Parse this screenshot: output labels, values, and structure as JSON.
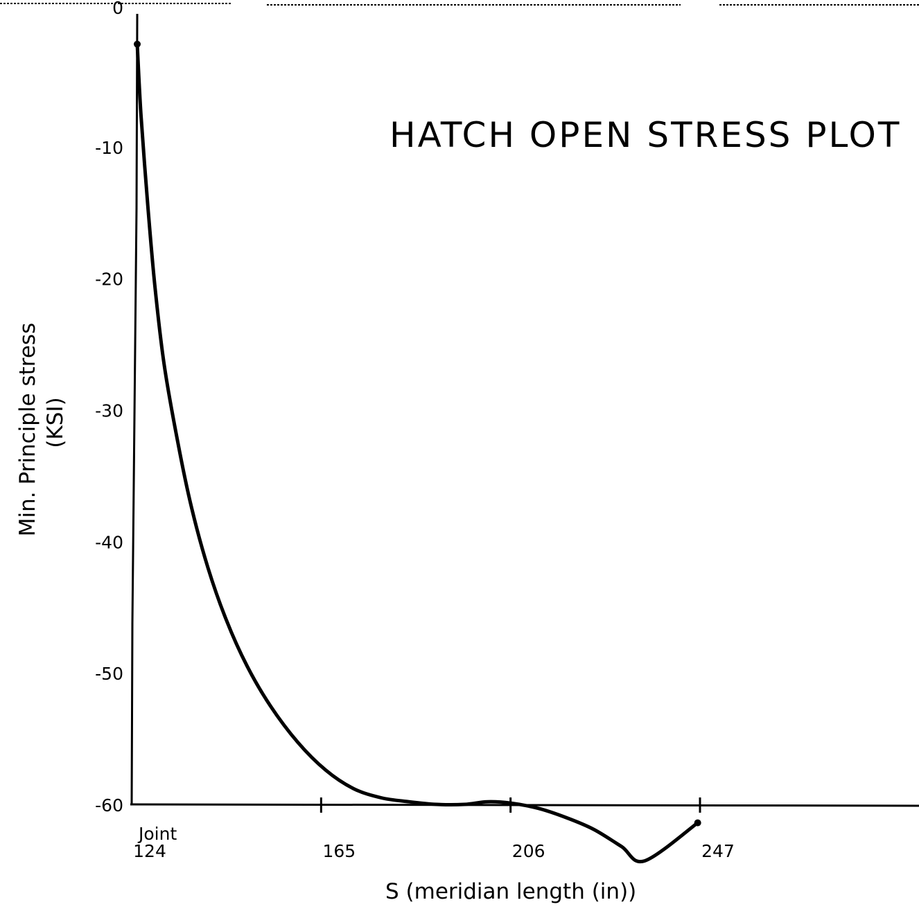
{
  "chart_data": {
    "type": "line",
    "title": "HATCH OPEN STRESS PLOT",
    "xlabel": "S (meridian length (in))",
    "ylabel_line1": "Min. Principle stress",
    "ylabel_line2": "(KSI)",
    "xlim": [
      124,
      247
    ],
    "ylim": [
      -60,
      0
    ],
    "x_ticks": [
      {
        "value": 124,
        "label": "124",
        "note": "Joint"
      },
      {
        "value": 165,
        "label": "165"
      },
      {
        "value": 206,
        "label": "206"
      },
      {
        "value": 247,
        "label": "247"
      }
    ],
    "y_ticks": [
      {
        "value": 0,
        "label": "0"
      },
      {
        "value": -10,
        "label": "-10"
      },
      {
        "value": -20,
        "label": "-20"
      },
      {
        "value": -30,
        "label": "-30"
      },
      {
        "value": -40,
        "label": "-40"
      },
      {
        "value": -50,
        "label": "-50"
      },
      {
        "value": -60,
        "label": "-60"
      }
    ],
    "series": [
      {
        "points": [
          [
            125.2,
            -2.2
          ],
          [
            126.0,
            -7.5
          ],
          [
            127.5,
            -14.5
          ],
          [
            129.0,
            -20.5
          ],
          [
            131.0,
            -26.5
          ],
          [
            134.0,
            -32.5
          ],
          [
            137.0,
            -37.5
          ],
          [
            140.5,
            -42.0
          ],
          [
            144.5,
            -46.0
          ],
          [
            149.0,
            -49.5
          ],
          [
            154.0,
            -52.5
          ],
          [
            160.0,
            -55.3
          ],
          [
            166.0,
            -57.4
          ],
          [
            172.0,
            -58.8
          ],
          [
            178.0,
            -59.5
          ],
          [
            184.0,
            -59.8
          ],
          [
            190.0,
            -60.0
          ],
          [
            196.0,
            -60.0
          ],
          [
            201.0,
            -59.8
          ],
          [
            206.0,
            -59.9
          ],
          [
            212.0,
            -60.3
          ],
          [
            218.0,
            -61.0
          ],
          [
            224.0,
            -61.9
          ],
          [
            230.0,
            -63.2
          ],
          [
            235.0,
            -64.3
          ],
          [
            246.5,
            -61.4
          ]
        ]
      }
    ],
    "markers": [
      {
        "x": 125.2,
        "y": -2.2
      },
      {
        "x": 246.5,
        "y": -61.4
      }
    ],
    "grid": false,
    "legend": "none"
  }
}
